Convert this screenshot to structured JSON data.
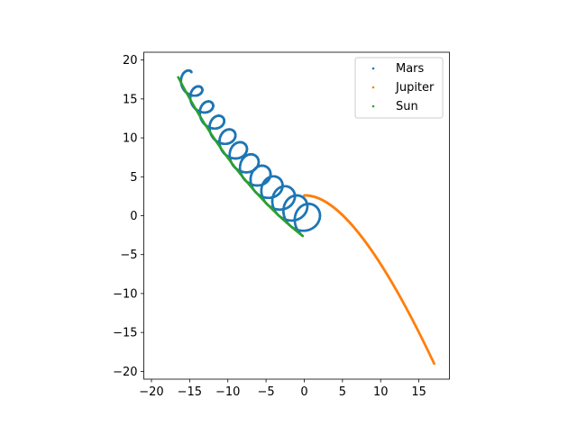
{
  "chart_data": {
    "type": "scatter",
    "title": "",
    "xlabel": "",
    "ylabel": "",
    "xlim": [
      -21,
      19
    ],
    "ylim": [
      -21,
      21
    ],
    "aspect": "equal",
    "grid": false,
    "legend_position": "top-right",
    "xticks": [
      -20,
      -15,
      -10,
      -5,
      0,
      5,
      10,
      15
    ],
    "yticks": [
      -20,
      -15,
      -10,
      -5,
      0,
      5,
      10,
      15,
      20
    ],
    "xtick_labels": [
      "−20",
      "−15",
      "−10",
      "−5",
      "0",
      "5",
      "10",
      "15"
    ],
    "ytick_labels": [
      "−20",
      "−15",
      "−10",
      "−5",
      "0",
      "5",
      "10",
      "15",
      "20"
    ],
    "series": [
      {
        "name": "Mars",
        "color": "#1f77b4",
        "marker_size": 1.6,
        "trajectory": {
          "guide": {
            "start": [
              -0.2,
              -2.6
            ],
            "control": [
              -9.5,
              4.5
            ],
            "end": [
              -16.5,
              17.5
            ]
          },
          "loops": 11.5,
          "loop_radius": 2.0,
          "sample_count": 2600
        }
      },
      {
        "name": "Jupiter",
        "color": "#ff7f0e",
        "marker_size": 1.7,
        "trajectory": {
          "guide": {
            "start": [
              0.0,
              2.6
            ],
            "control": [
              6.5,
              2.8
            ],
            "end": [
              17.0,
              -19.0
            ]
          },
          "sample_count": 420
        }
      },
      {
        "name": "Sun",
        "color": "#2ca02c",
        "marker_size": 1.6,
        "trajectory": {
          "guide": {
            "start": [
              -0.2,
              -2.6
            ],
            "control": [
              -9.5,
              4.5
            ],
            "end": [
              -16.5,
              17.8
            ]
          },
          "sample_count": 260
        }
      }
    ]
  }
}
